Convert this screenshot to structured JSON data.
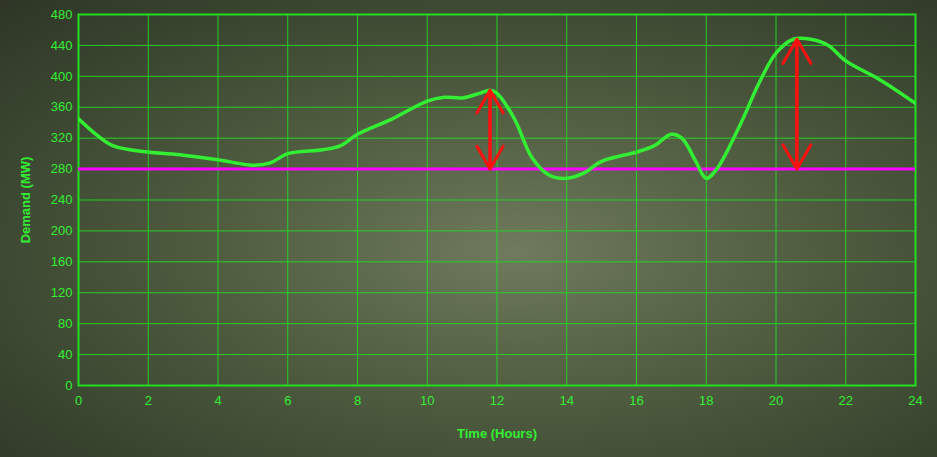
{
  "chart_data": {
    "type": "line",
    "x_label": "Time (Hours)",
    "y_label": "Demand (MW)",
    "x": [
      0,
      0.5,
      1,
      2,
      3,
      4,
      5,
      5.5,
      6,
      7,
      7.5,
      8,
      9,
      10,
      10.5,
      11,
      11.5,
      11.8,
      12,
      12.5,
      13,
      13.5,
      14,
      14.5,
      15,
      16,
      16.5,
      17,
      17.3,
      17.7,
      18,
      18.3,
      19,
      19.5,
      20,
      20.5,
      21,
      21.5,
      22,
      23,
      24
    ],
    "values": [
      345,
      325,
      310,
      302,
      298,
      292,
      285,
      288,
      300,
      305,
      310,
      325,
      345,
      368,
      373,
      372,
      378,
      382,
      378,
      345,
      295,
      272,
      268,
      275,
      290,
      302,
      310,
      325,
      320,
      290,
      268,
      280,
      340,
      390,
      430,
      448,
      448,
      440,
      420,
      395,
      365
    ],
    "color": "#33ee33",
    "xlim": [
      0,
      24
    ],
    "xticks": [
      0,
      2,
      4,
      6,
      8,
      10,
      12,
      14,
      16,
      18,
      20,
      22,
      24
    ],
    "ylim": [
      0,
      480
    ],
    "yticks": [
      0,
      40,
      80,
      120,
      160,
      200,
      240,
      280,
      320,
      360,
      400,
      440,
      480
    ],
    "grid": true,
    "reference_line": {
      "value": 280,
      "color": "#ff00ff"
    },
    "arrows": [
      {
        "x": 11.8,
        "from": 280,
        "to": 382,
        "color": "#ff1010"
      },
      {
        "x": 20.6,
        "from": 280,
        "to": 448,
        "color": "#ff1010"
      }
    ]
  }
}
